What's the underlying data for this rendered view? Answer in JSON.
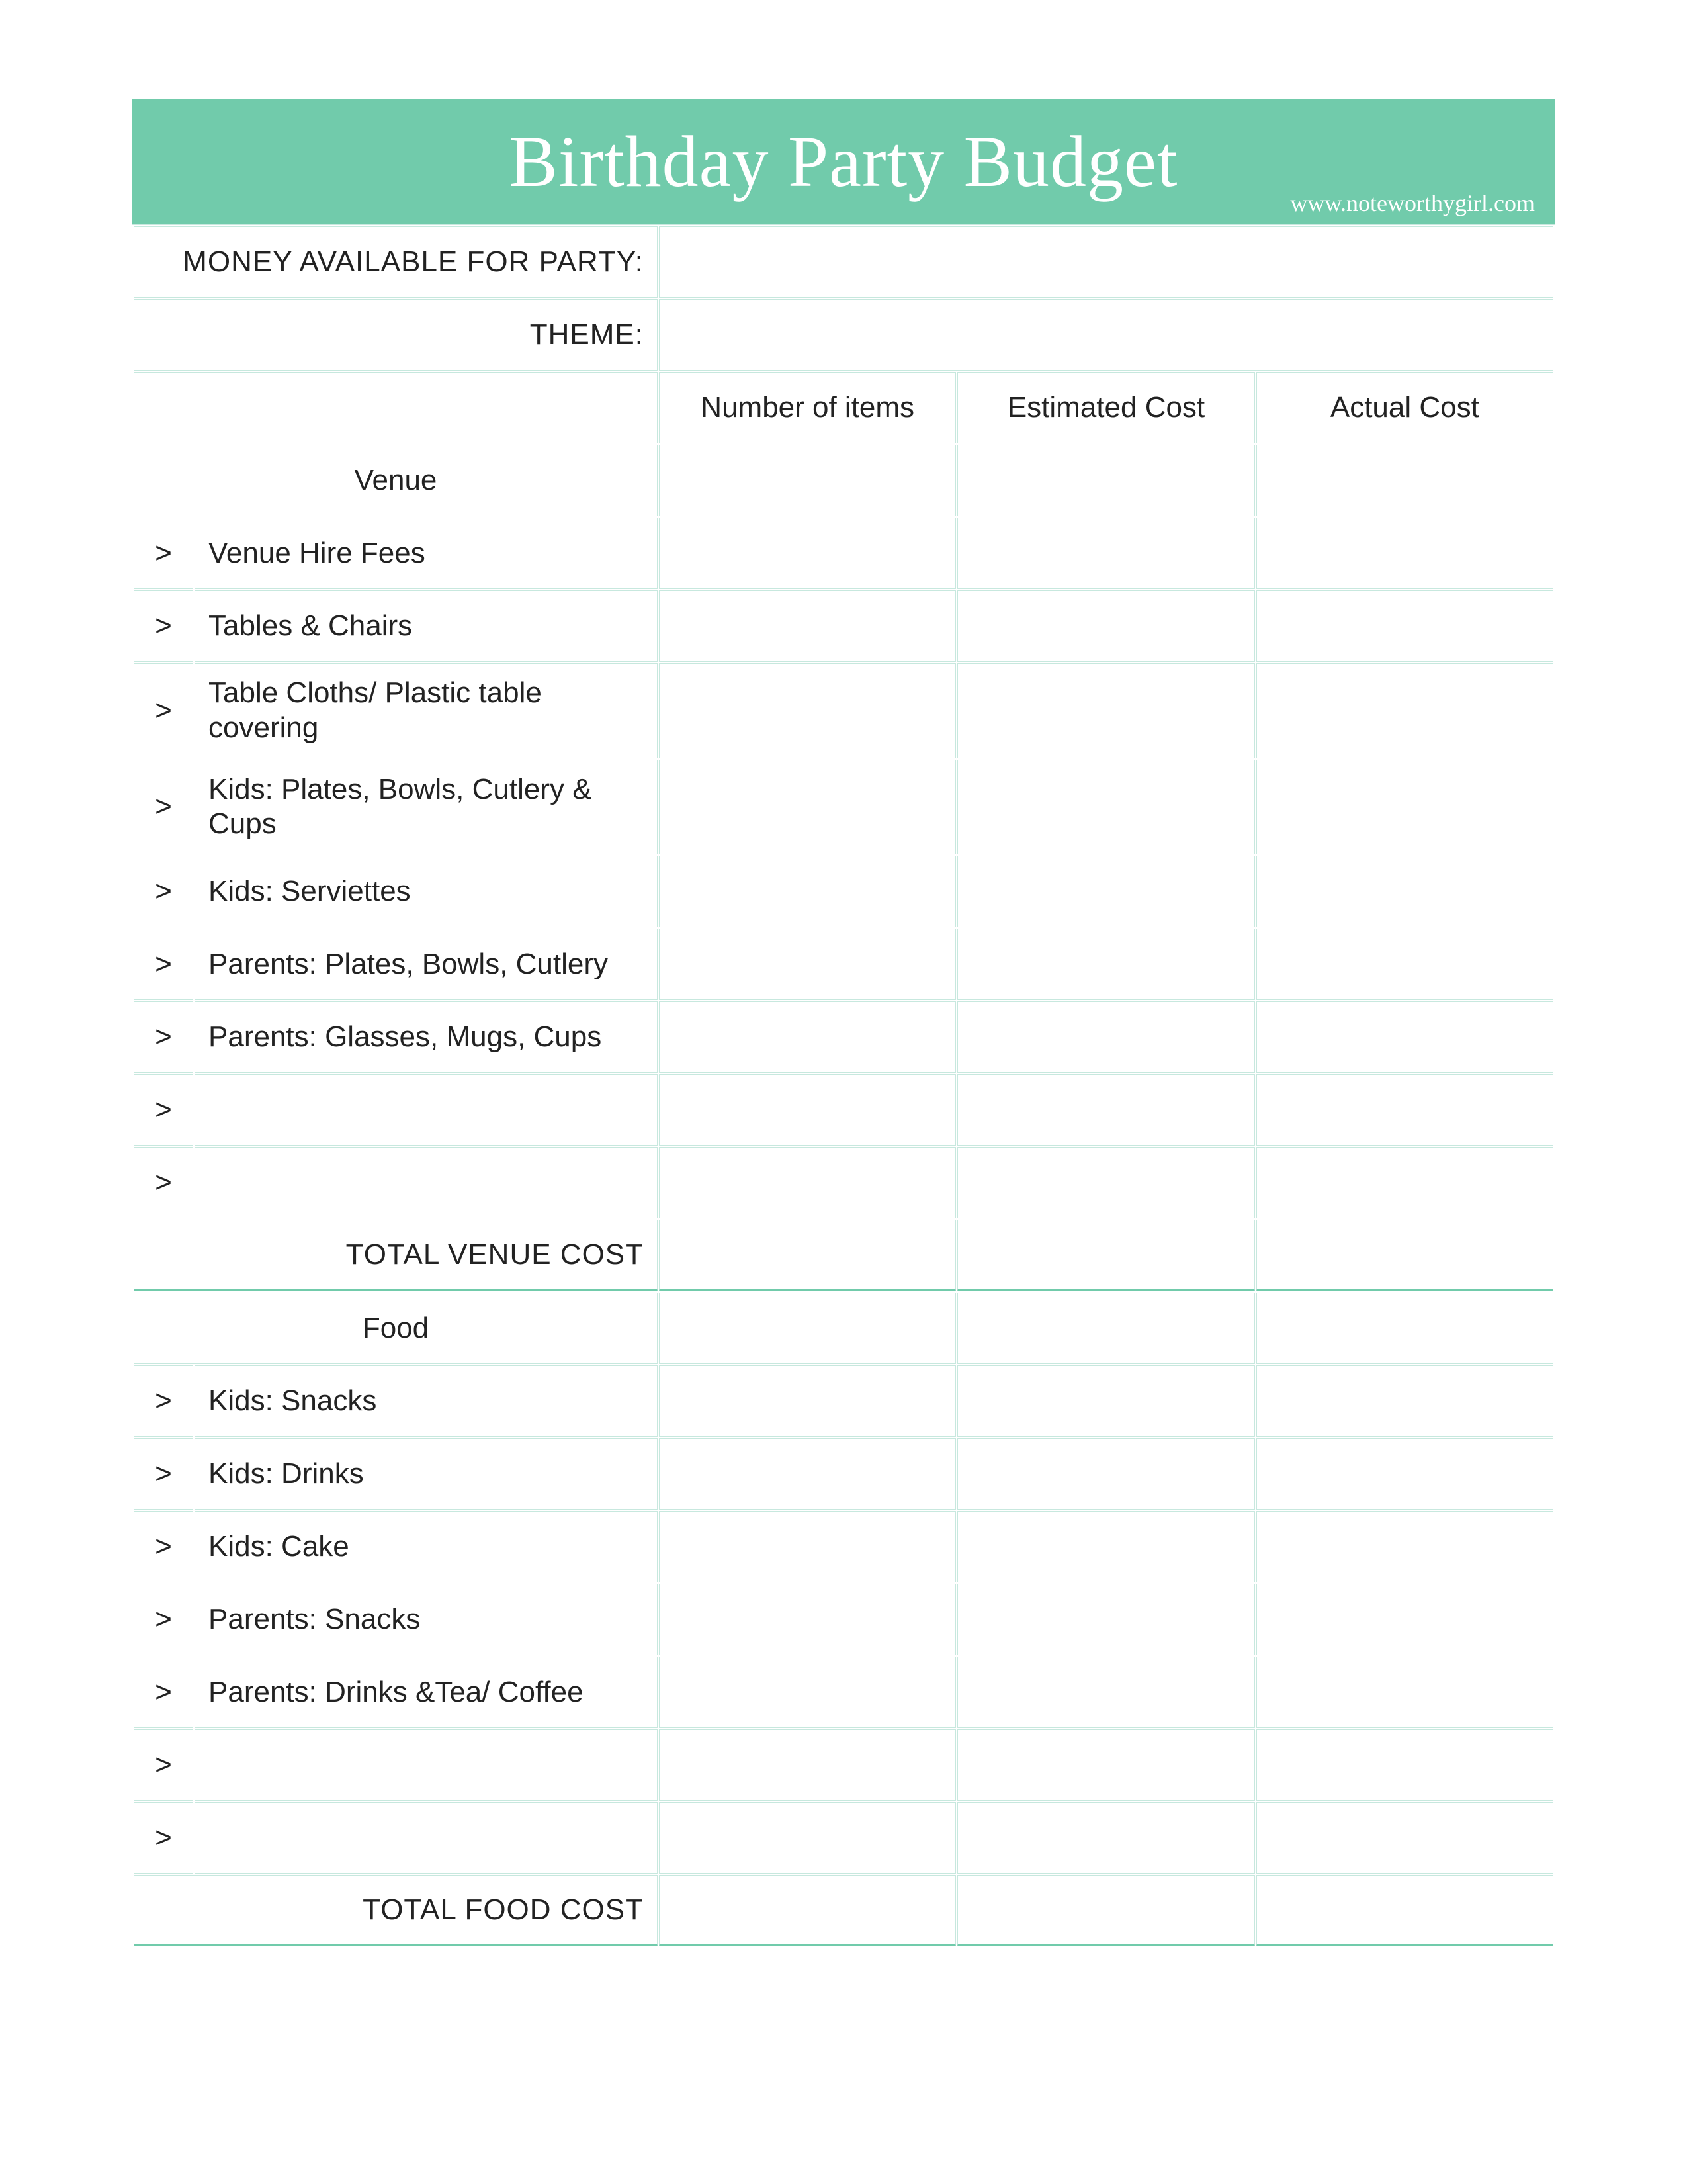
{
  "colors": {
    "header_bg": "#71cbab",
    "section_bg": "#a9cfe7",
    "border_light": "#c7e8de",
    "text": "#222222",
    "white": "#ffffff"
  },
  "header": {
    "title": "Birthday Party Budget",
    "url": "www.noteworthygirl.com"
  },
  "top_rows": [
    {
      "label": "MONEY AVAILABLE FOR PARTY:"
    },
    {
      "label": "THEME:"
    }
  ],
  "column_headers": {
    "num": "Number of items",
    "est": "Estimated Cost",
    "act": "Actual Cost"
  },
  "chevron": ">",
  "sections": [
    {
      "title": "Venue",
      "items": [
        "Venue Hire Fees",
        "Tables & Chairs",
        "Table Cloths/ Plastic table covering",
        "Kids: Plates, Bowls, Cutlery & Cups",
        "Kids: Serviettes",
        "Parents: Plates, Bowls, Cutlery",
        "Parents: Glasses, Mugs, Cups",
        "",
        ""
      ],
      "total_label": "TOTAL VENUE COST"
    },
    {
      "title": "Food",
      "items": [
        "Kids: Snacks",
        "Kids: Drinks",
        "Kids: Cake",
        "Parents: Snacks",
        "Parents: Drinks &Tea/ Coffee",
        "",
        ""
      ],
      "total_label": "TOTAL FOOD COST"
    }
  ]
}
